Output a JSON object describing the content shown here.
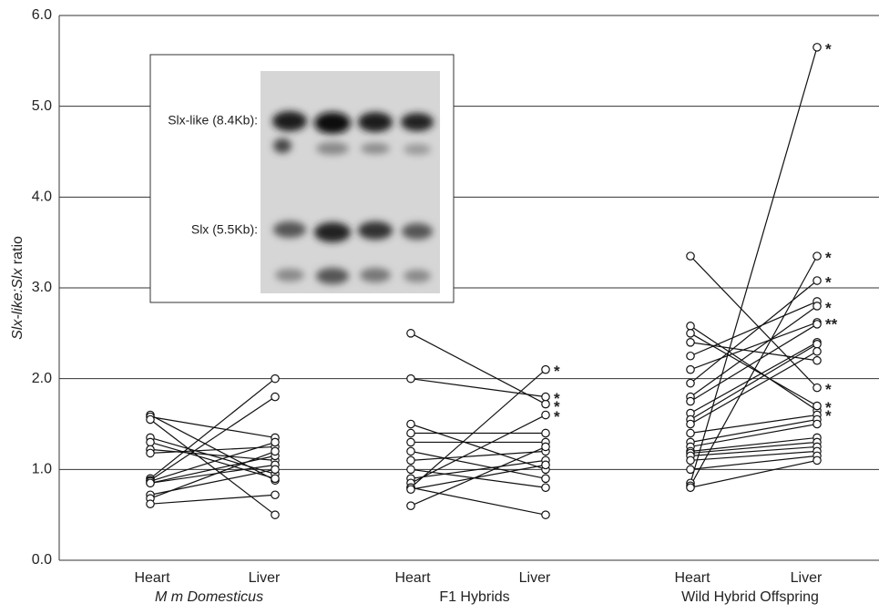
{
  "chart_data": {
    "type": "slope",
    "y_label_italic": "Slx-like:Slx",
    "y_label": "ratio",
    "ylim": [
      0,
      6
    ],
    "yticks": [
      {
        "value": 0,
        "label": "0.0"
      },
      {
        "value": 1,
        "label": "1.0"
      },
      {
        "value": 2,
        "label": "2.0"
      },
      {
        "value": 3,
        "label": "3.0"
      },
      {
        "value": 4,
        "label": "4.0"
      },
      {
        "value": 5,
        "label": "5.0"
      },
      {
        "value": 6,
        "label": "6.0"
      }
    ],
    "grid": true,
    "groups": [
      {
        "name": "M m Domesticus",
        "italic": true,
        "categories": [
          "Heart",
          "Liver"
        ],
        "heart": [
          1.6,
          1.58,
          1.35,
          1.3,
          1.22,
          1.18,
          0.9,
          0.88,
          0.87,
          0.85,
          0.85,
          0.72,
          0.68,
          0.62,
          1.55
        ],
        "liver": [
          0.88,
          1.35,
          0.95,
          0.9,
          1.1,
          1.25,
          2.0,
          1.8,
          1.3,
          1.15,
          1.05,
          1.0,
          1.2,
          0.72,
          0.5
        ],
        "annotations": []
      },
      {
        "name": "F1 Hybrids",
        "italic": false,
        "categories": [
          "Heart",
          "Liver"
        ],
        "heart": [
          2.5,
          2.0,
          1.5,
          1.4,
          1.3,
          1.2,
          1.1,
          1.0,
          0.9,
          0.85,
          0.8,
          0.8,
          0.78,
          0.6
        ],
        "liver": [
          1.72,
          1.8,
          1.0,
          1.4,
          1.3,
          0.9,
          1.2,
          0.8,
          1.1,
          1.6,
          2.1,
          0.5,
          1.05,
          1.25
        ],
        "annotations": [
          {
            "value": 2.1,
            "text": "*"
          },
          {
            "value": 1.8,
            "text": "*"
          },
          {
            "value": 1.71,
            "text": "*"
          },
          {
            "value": 1.6,
            "text": "*"
          }
        ]
      },
      {
        "name": "Wild Hybrid Offspring",
        "italic": false,
        "categories": [
          "Heart",
          "Liver"
        ],
        "heart": [
          0.85,
          0.82,
          3.35,
          2.58,
          2.5,
          2.4,
          2.25,
          2.1,
          1.95,
          1.8,
          1.75,
          1.62,
          1.55,
          1.5,
          1.4,
          1.3,
          1.25,
          1.2,
          1.18,
          1.15,
          1.1,
          1.0,
          0.8
        ],
        "liver": [
          5.65,
          3.35,
          1.9,
          1.65,
          1.7,
          2.2,
          2.85,
          2.62,
          3.08,
          2.8,
          2.6,
          2.4,
          2.38,
          2.3,
          1.6,
          1.55,
          1.5,
          1.35,
          1.3,
          1.25,
          1.2,
          1.15,
          1.1
        ],
        "annotations": [
          {
            "value": 5.65,
            "text": "*"
          },
          {
            "value": 3.35,
            "text": "*"
          },
          {
            "value": 3.08,
            "text": "*"
          },
          {
            "value": 2.8,
            "text": "*"
          },
          {
            "value": 2.62,
            "text": "**"
          },
          {
            "value": 1.9,
            "text": "*"
          },
          {
            "value": 1.7,
            "text": "*"
          },
          {
            "value": 1.61,
            "text": "*"
          }
        ]
      }
    ],
    "inset": {
      "labels": [
        "Slx-like (8.4Kb):",
        "Slx (5.5Kb):"
      ]
    }
  }
}
